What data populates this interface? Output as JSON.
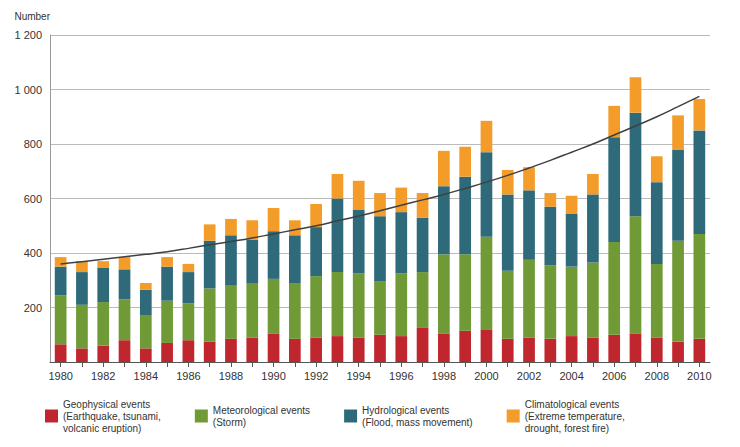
{
  "chart_data": {
    "type": "bar",
    "stacked": true,
    "grid": true,
    "legend": "bottom",
    "y_label": "Number",
    "categories": [
      1980,
      null,
      1982,
      null,
      1984,
      null,
      1986,
      null,
      1988,
      null,
      1990,
      null,
      1992,
      null,
      1994,
      null,
      1996,
      null,
      1998,
      null,
      2000,
      null,
      2002,
      null,
      2004,
      null,
      2006,
      null,
      2008,
      null,
      2010
    ],
    "ylim": [
      0,
      1200
    ],
    "yticks": [
      200,
      400,
      600,
      800,
      {
        "value": 1000,
        "label": "1 000"
      },
      {
        "value": 1200,
        "label": "1 200"
      }
    ],
    "series": [
      {
        "name": "Geophysical events\n(Earthquake, tsunami,\nvolcanic eruption)",
        "type": "bar",
        "color": "#c0262d",
        "values": [
          65,
          50,
          60,
          80,
          50,
          70,
          80,
          75,
          85,
          90,
          105,
          85,
          90,
          95,
          90,
          100,
          95,
          125,
          105,
          115,
          120,
          85,
          90,
          85,
          95,
          90,
          100,
          105,
          90,
          75,
          85
        ]
      },
      {
        "name": "Meteorological events\n(Storm)",
        "type": "bar",
        "color": "#6f9a36",
        "values": [
          180,
          160,
          160,
          150,
          120,
          155,
          135,
          195,
          195,
          200,
          200,
          205,
          225,
          235,
          235,
          195,
          230,
          205,
          290,
          280,
          340,
          250,
          285,
          270,
          255,
          275,
          340,
          430,
          270,
          370,
          385
        ]
      },
      {
        "name": "Hydrological events\n(Flood, mass movement)",
        "type": "bar",
        "color": "#2e6a79",
        "values": [
          105,
          120,
          125,
          110,
          95,
          125,
          115,
          175,
          185,
          160,
          175,
          175,
          180,
          270,
          235,
          240,
          225,
          200,
          250,
          285,
          310,
          280,
          255,
          215,
          195,
          250,
          385,
          380,
          300,
          335,
          380
        ]
      },
      {
        "name": "Climatological events\n(Extreme temperature,\ndrought, forest fire)",
        "type": "bar",
        "color": "#f39c2a",
        "values": [
          35,
          40,
          25,
          45,
          25,
          35,
          30,
          60,
          60,
          70,
          85,
          55,
          85,
          90,
          105,
          85,
          90,
          90,
          130,
          110,
          115,
          90,
          85,
          50,
          65,
          75,
          115,
          130,
          95,
          125,
          115
        ]
      },
      {
        "type": "line",
        "color": "#404040",
        "values": [
          360,
          368,
          377,
          386,
          395,
          405,
          417,
          430,
          442,
          455,
          470,
          485,
          500,
          518,
          536,
          555,
          575,
          595,
          615,
          637,
          660,
          685,
          712,
          740,
          770,
          800,
          833,
          866,
          900,
          937,
          975
        ]
      }
    ]
  }
}
